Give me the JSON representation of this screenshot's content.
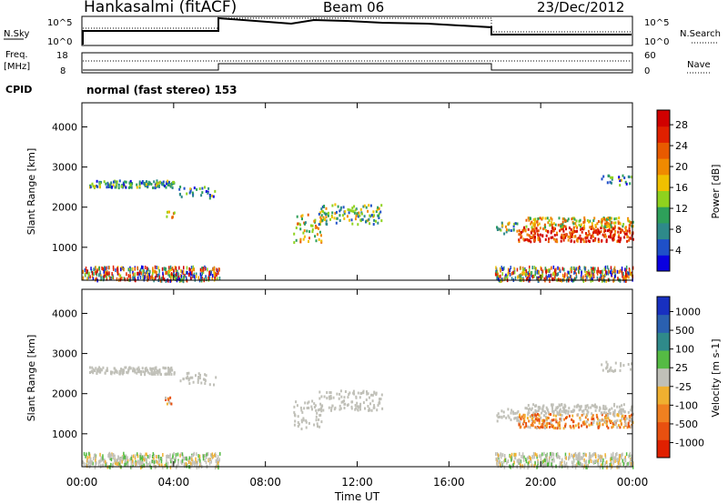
{
  "header": {
    "station": "Hankasalmi (fitACF)",
    "beam": "Beam 06",
    "date": "23/Dec/2012"
  },
  "mode": "normal (fast stereo) 153",
  "cpid_label": "CPID",
  "top_panel": {
    "left_label": "N.Sky",
    "right_label": "N.Search",
    "left_ticks": [
      "10^5",
      "10^0"
    ],
    "right_ticks": [
      "10^5",
      "10^0"
    ]
  },
  "freq_panel": {
    "left_label_1": "Freq.",
    "left_label_2": "[MHz]",
    "right_label": "Nave",
    "left_ticks": [
      "18",
      "8"
    ],
    "right_ticks": [
      "60",
      "0"
    ]
  },
  "chart_data": [
    {
      "type": "heatmap",
      "title": "Power",
      "ylabel": "Slant Range [km]",
      "xlabel": "Time UT",
      "x_ticks": [
        "00:00",
        "04:00",
        "08:00",
        "12:00",
        "16:00",
        "20:00",
        "00:00"
      ],
      "x_range_hours": [
        0,
        24
      ],
      "y_ticks": [
        "1000",
        "2000",
        "3000",
        "4000"
      ],
      "ylim": [
        180,
        4600
      ],
      "colorbar": {
        "label": "Power [dB]",
        "ticks": [
          "4",
          "8",
          "12",
          "16",
          "20",
          "24",
          "28"
        ],
        "colors": [
          "#0a00e0",
          "#1f50c8",
          "#2e8a8a",
          "#2ea05a",
          "#8fd21e",
          "#f0c000",
          "#f08a00",
          "#e85a00",
          "#e02000",
          "#d00000"
        ]
      }
    },
    {
      "type": "heatmap",
      "title": "Velocity",
      "ylabel": "Slant Range [km]",
      "xlabel": "Time UT",
      "x_ticks": [
        "00:00",
        "04:00",
        "08:00",
        "12:00",
        "16:00",
        "20:00",
        "00:00"
      ],
      "x_range_hours": [
        0,
        24
      ],
      "y_ticks": [
        "1000",
        "2000",
        "3000",
        "4000"
      ],
      "ylim": [
        180,
        4600
      ],
      "colorbar": {
        "label": "Velocity [m s-1]",
        "ticks": [
          "1000",
          "500",
          "100",
          "25",
          "-25",
          "-100",
          "-500",
          "-1000"
        ],
        "colors": [
          "#1830c0",
          "#2a60b0",
          "#2f8a8a",
          "#55bb44",
          "#c0c0b8",
          "#f0b030",
          "#f08020",
          "#e85010",
          "#e02000"
        ]
      }
    }
  ],
  "colors": {
    "ground_scatter": "#c0c0b8",
    "frame": "#000000"
  }
}
